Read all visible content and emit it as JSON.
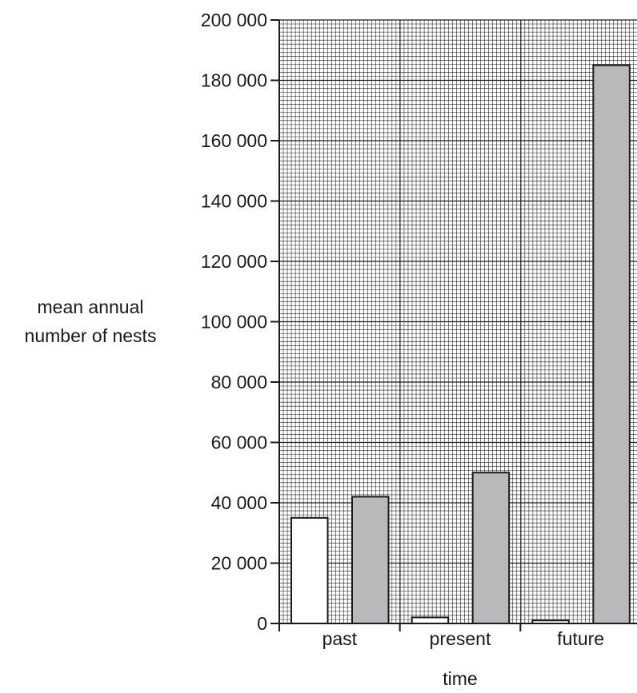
{
  "chart_data": {
    "type": "bar",
    "xlabel": "time",
    "ylabel": [
      "mean annual",
      "number of nests"
    ],
    "categories": [
      "past",
      "present",
      "future"
    ],
    "ylim": [
      0,
      200000
    ],
    "y_tick_values": [
      0,
      20000,
      40000,
      60000,
      80000,
      100000,
      120000,
      140000,
      160000,
      180000,
      200000
    ],
    "y_tick_labels": [
      "0",
      "20 000",
      "40 000",
      "60 000",
      "80 000",
      "100 000",
      "120 000",
      "140 000",
      "160 000",
      "180 000",
      "200 000"
    ],
    "grid": true,
    "legend": "none",
    "series": [
      {
        "values": [
          35000,
          2000,
          1000
        ],
        "color": "#ffffff"
      },
      {
        "values": [
          42000,
          50000,
          185000
        ],
        "color": "#b9b9bb"
      }
    ]
  }
}
